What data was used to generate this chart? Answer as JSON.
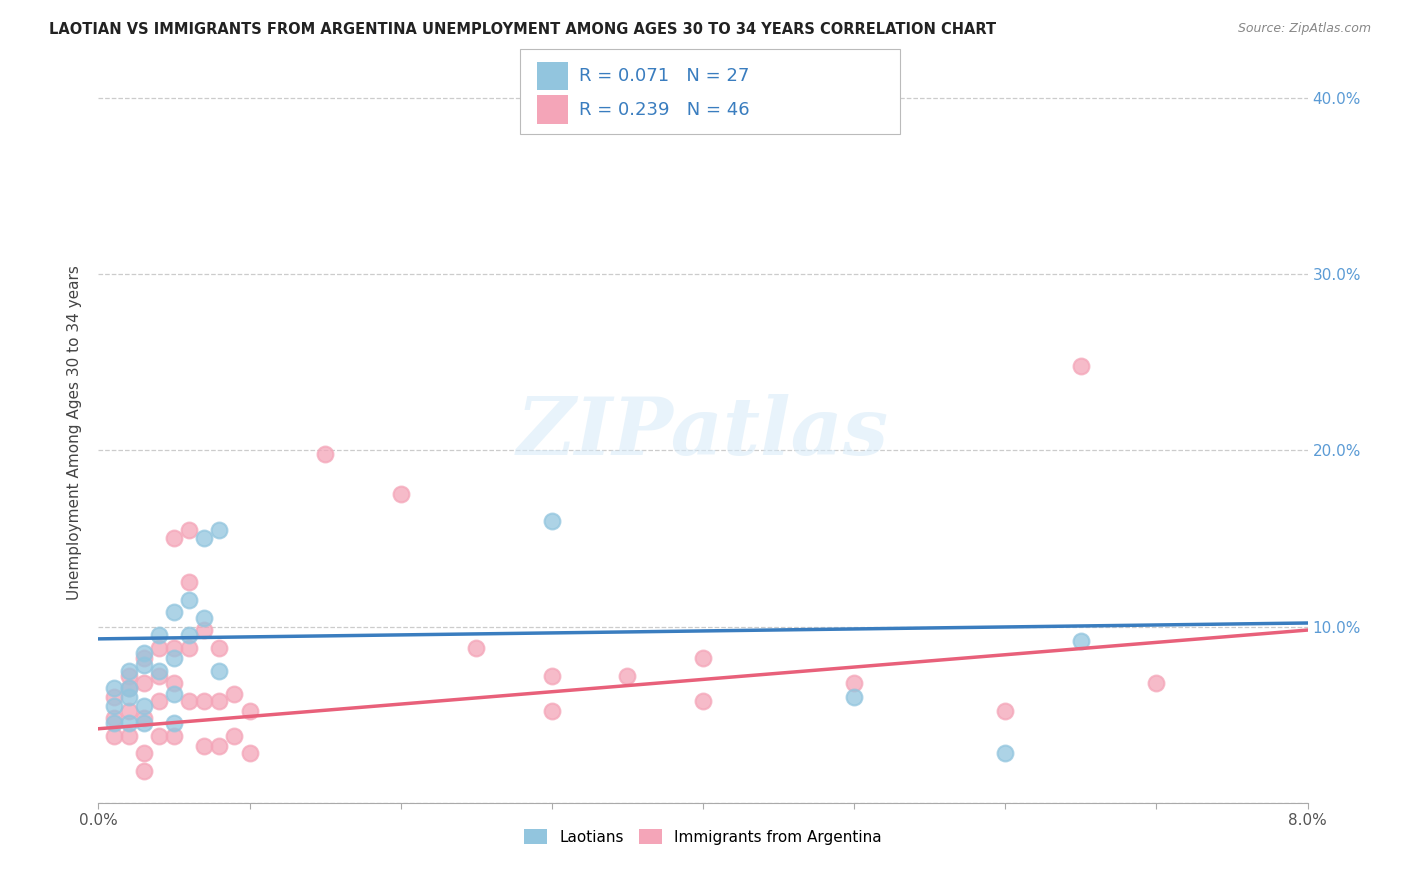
{
  "title": "LAOTIAN VS IMMIGRANTS FROM ARGENTINA UNEMPLOYMENT AMONG AGES 30 TO 34 YEARS CORRELATION CHART",
  "source": "Source: ZipAtlas.com",
  "ylabel": "Unemployment Among Ages 30 to 34 years",
  "xlim": [
    0.0,
    0.08
  ],
  "ylim": [
    0.0,
    0.42
  ],
  "xticks": [
    0.0,
    0.01,
    0.02,
    0.03,
    0.04,
    0.05,
    0.06,
    0.07,
    0.08
  ],
  "xtick_labels": [
    "0.0%",
    "",
    "",
    "",
    "",
    "",
    "",
    "",
    "8.0%"
  ],
  "yticks": [
    0.0,
    0.1,
    0.2,
    0.3,
    0.4
  ],
  "ytick_labels_right": [
    "",
    "10.0%",
    "20.0%",
    "30.0%",
    "40.0%"
  ],
  "blue_color": "#92c5de",
  "pink_color": "#f4a5b8",
  "blue_line_color": "#3a7dbf",
  "pink_line_color": "#e8607a",
  "watermark": "ZIPatlas",
  "laotian_x": [
    0.001,
    0.001,
    0.001,
    0.002,
    0.002,
    0.002,
    0.002,
    0.003,
    0.003,
    0.003,
    0.003,
    0.004,
    0.004,
    0.005,
    0.005,
    0.005,
    0.005,
    0.006,
    0.006,
    0.007,
    0.007,
    0.008,
    0.008,
    0.03,
    0.05,
    0.06,
    0.065
  ],
  "laotian_y": [
    0.065,
    0.055,
    0.045,
    0.075,
    0.065,
    0.06,
    0.045,
    0.085,
    0.078,
    0.055,
    0.045,
    0.095,
    0.075,
    0.108,
    0.082,
    0.062,
    0.045,
    0.115,
    0.095,
    0.15,
    0.105,
    0.155,
    0.075,
    0.16,
    0.06,
    0.028,
    0.092
  ],
  "argentina_x": [
    0.001,
    0.001,
    0.001,
    0.002,
    0.002,
    0.002,
    0.002,
    0.003,
    0.003,
    0.003,
    0.003,
    0.003,
    0.004,
    0.004,
    0.004,
    0.004,
    0.005,
    0.005,
    0.005,
    0.005,
    0.006,
    0.006,
    0.006,
    0.006,
    0.007,
    0.007,
    0.007,
    0.008,
    0.008,
    0.008,
    0.009,
    0.009,
    0.01,
    0.01,
    0.015,
    0.02,
    0.025,
    0.03,
    0.03,
    0.035,
    0.04,
    0.04,
    0.05,
    0.06,
    0.065,
    0.07
  ],
  "argentina_y": [
    0.06,
    0.048,
    0.038,
    0.072,
    0.065,
    0.052,
    0.038,
    0.082,
    0.068,
    0.048,
    0.028,
    0.018,
    0.088,
    0.072,
    0.058,
    0.038,
    0.15,
    0.088,
    0.068,
    0.038,
    0.155,
    0.125,
    0.088,
    0.058,
    0.098,
    0.058,
    0.032,
    0.088,
    0.058,
    0.032,
    0.062,
    0.038,
    0.052,
    0.028,
    0.198,
    0.175,
    0.088,
    0.072,
    0.052,
    0.072,
    0.082,
    0.058,
    0.068,
    0.052,
    0.248,
    0.068
  ],
  "laotian_trend_x": [
    0.0,
    0.08
  ],
  "laotian_trend_y": [
    0.093,
    0.102
  ],
  "argentina_trend_x": [
    0.0,
    0.08
  ],
  "argentina_trend_y": [
    0.042,
    0.098
  ]
}
